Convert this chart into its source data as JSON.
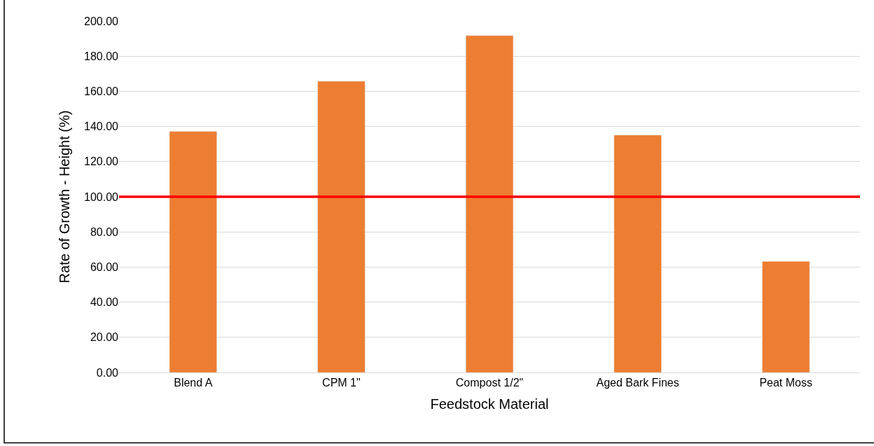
{
  "chart_data": {
    "type": "bar",
    "xlabel": "Feedstock Material",
    "ylabel": "Rate of Growth - Height (%)",
    "categories": [
      "Blend A",
      "CPM 1\"",
      "Compost 1/2\"",
      "Aged Bark Fines",
      "Peat Moss"
    ],
    "values": [
      137.2,
      165.7,
      191.7,
      135.1,
      63.2
    ],
    "color": "#ed7d31",
    "ylim": [
      0,
      200
    ],
    "yticks": [
      {
        "value": 0,
        "label": "0.00"
      },
      {
        "value": 20,
        "label": "20.00"
      },
      {
        "value": 40,
        "label": "40.00"
      },
      {
        "value": 60,
        "label": "60.00"
      },
      {
        "value": 80,
        "label": "80.00"
      },
      {
        "value": 100,
        "label": "100.00"
      },
      {
        "value": 120,
        "label": "120.00"
      },
      {
        "value": 140,
        "label": "140.00"
      },
      {
        "value": 160,
        "label": "160.00"
      },
      {
        "value": 180,
        "label": "180.00"
      },
      {
        "value": 200,
        "label": "200.00"
      }
    ],
    "grid": "y",
    "ref_lines": [
      {
        "axis": "y",
        "value": 100,
        "color": "#ff0000",
        "line_style": "solid"
      }
    ]
  }
}
